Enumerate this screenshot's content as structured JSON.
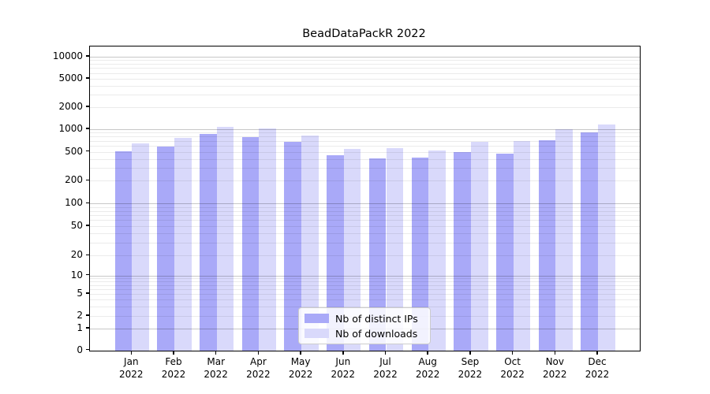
{
  "title": "BeadDataPackR 2022",
  "chart_data": {
    "type": "bar",
    "title": "BeadDataPackR 2022",
    "xlabel": "",
    "ylabel": "",
    "scale": "log (symlog-like, baseline 0)",
    "grid": true,
    "legend_position": "bottom-center",
    "yticks": [
      0,
      1,
      2,
      5,
      10,
      20,
      50,
      100,
      200,
      500,
      1000,
      2000,
      5000,
      10000
    ],
    "ylim": [
      0,
      13500
    ],
    "categories": [
      {
        "month": "Jan",
        "year": "2022"
      },
      {
        "month": "Feb",
        "year": "2022"
      },
      {
        "month": "Mar",
        "year": "2022"
      },
      {
        "month": "Apr",
        "year": "2022"
      },
      {
        "month": "May",
        "year": "2022"
      },
      {
        "month": "Jun",
        "year": "2022"
      },
      {
        "month": "Jul",
        "year": "2022"
      },
      {
        "month": "Aug",
        "year": "2022"
      },
      {
        "month": "Sep",
        "year": "2022"
      },
      {
        "month": "Oct",
        "year": "2022"
      },
      {
        "month": "Nov",
        "year": "2022"
      },
      {
        "month": "Dec",
        "year": "2022"
      }
    ],
    "series": [
      {
        "name": "Nb of distinct IPs",
        "color": "#a9a9f8",
        "values": [
          510,
          590,
          860,
          790,
          675,
          450,
          405,
          415,
          500,
          470,
          715,
          910
        ]
      },
      {
        "name": "Nb of downloads",
        "color": "#d9d9fb",
        "values": [
          640,
          770,
          1080,
          1025,
          825,
          550,
          565,
          520,
          680,
          690,
          1005,
          1165
        ]
      }
    ]
  },
  "colors": {
    "major_gridline": "#c7c7c7",
    "minor_gridline": "#ebebeb",
    "axis": "#000000",
    "background": "#ffffff"
  }
}
